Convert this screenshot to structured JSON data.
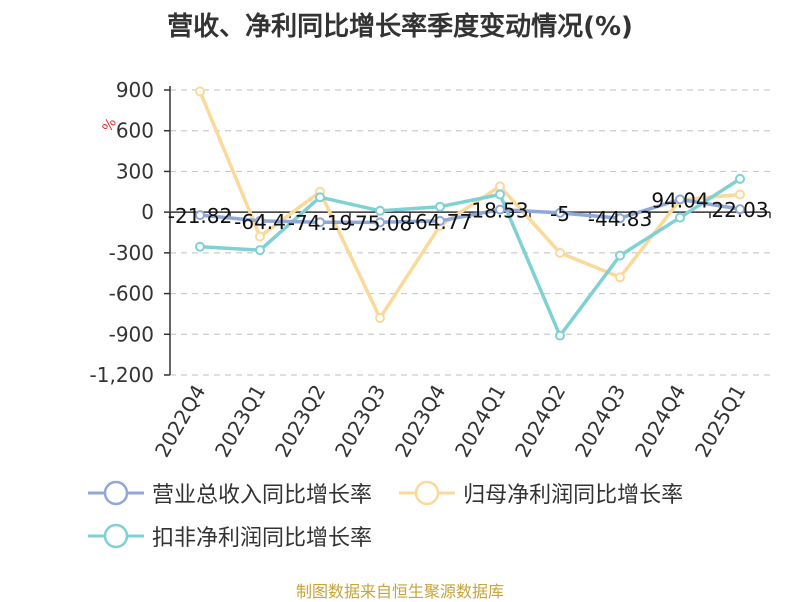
{
  "chart_data": {
    "type": "line",
    "title": "营收、净利同比增长率季度变动情况(%)",
    "ylabel": "%",
    "ylim": [
      -1200,
      900
    ],
    "yticks": [
      900,
      600,
      300,
      0,
      -300,
      -600,
      -900,
      -1200
    ],
    "ytick_labels": [
      "900",
      "600",
      "300",
      "0",
      "-300",
      "-600",
      "-900",
      "-1,200"
    ],
    "grid": true,
    "legend_position": "bottom",
    "categories": [
      "2022Q4",
      "2023Q1",
      "2023Q2",
      "2023Q3",
      "2023Q4",
      "2024Q1",
      "2024Q2",
      "2024Q3",
      "2024Q4",
      "2025Q1"
    ],
    "series": [
      {
        "name": "营业总收入同比增长率",
        "color": "#8fa8d8",
        "values": [
          -21.82,
          -64.4,
          -74.19,
          -75.08,
          -64.77,
          18.53,
          -5,
          -44.83,
          94.04,
          22.03
        ],
        "labels": [
          "-21.82",
          "-64.4",
          "-74.19",
          "-75.08",
          "-64.77",
          "18.53",
          "-5",
          "-44.83",
          "94.04",
          "22.03"
        ]
      },
      {
        "name": "归母净利润同比增长率",
        "color": "#fbd99a",
        "values": [
          890,
          -180,
          150,
          -780,
          -100,
          190,
          -300,
          -480,
          90,
          130
        ]
      },
      {
        "name": "扣非净利润同比增长率",
        "color": "#7fd1d4",
        "values": [
          -255,
          -280,
          110,
          10,
          40,
          130,
          -910,
          -320,
          -40,
          245
        ]
      }
    ]
  },
  "source": "制图数据来自恒生聚源数据库"
}
